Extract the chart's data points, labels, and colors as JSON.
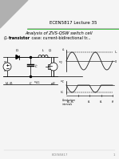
{
  "title_header": "ECEN5817 Lecture 35",
  "title_line1": "Analysis of ZVS-QSW switch cell",
  "title_line2_pre": "(1-",
  "title_line2_bold": "transistor",
  "title_line2_post": " case: current-bidirectional tr...",
  "slide_bg": "#f5f5f5",
  "corner_color": "#b0b0b0",
  "header_line_color": "#888888",
  "accent_color": "#00aa00",
  "footer_text": "ECEN5817",
  "page_num": "1",
  "waveform_upper_color": "#222222",
  "waveform_lower_color": "#222222"
}
